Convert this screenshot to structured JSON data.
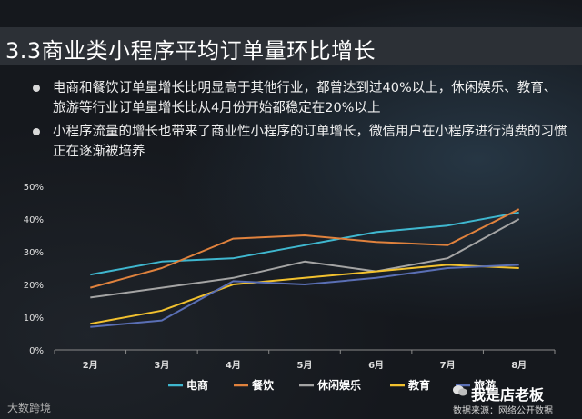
{
  "title": "3.3商业类小程序平均订单量环比增长",
  "bullets": [
    "电商和餐饮订单量增长比明显高于其他行业，都曾达到过40%以上，休闲娱乐、教育、旅游等行业订单量增长比从4月份开始都稳定在20%以上",
    "小程序流量的增长也带来了商业性小程序的订单增长，微信用户在小程序进行消费的习惯正在逐渐被培养"
  ],
  "watermark": "大数跨境",
  "brand": "我是店老板",
  "source": "数据来源：网络公开数据",
  "chart_data": {
    "type": "line",
    "categories": [
      "2月",
      "3月",
      "4月",
      "5月",
      "6月",
      "7月",
      "8月"
    ],
    "ylim": [
      0,
      50
    ],
    "yticks": [
      "0%",
      "10%",
      "20%",
      "30%",
      "40%",
      "50%"
    ],
    "grid": false,
    "legend_position": "bottom",
    "series": [
      {
        "name": "电商",
        "color": "#3fb7cf",
        "values": [
          23,
          27,
          28,
          32,
          36,
          38,
          42
        ]
      },
      {
        "name": "餐饮",
        "color": "#e0823d",
        "values": [
          19,
          25,
          34,
          35,
          33,
          32,
          43
        ]
      },
      {
        "name": "休闲娱乐",
        "color": "#a4a4a4",
        "values": [
          16,
          19,
          22,
          27,
          24,
          28,
          40
        ]
      },
      {
        "name": "教育",
        "color": "#f2c12e",
        "values": [
          8,
          12,
          20,
          22,
          24,
          26,
          25
        ]
      },
      {
        "name": "旅游",
        "color": "#5a6fb5",
        "values": [
          7,
          9,
          21,
          20,
          22,
          25,
          26
        ]
      }
    ]
  }
}
